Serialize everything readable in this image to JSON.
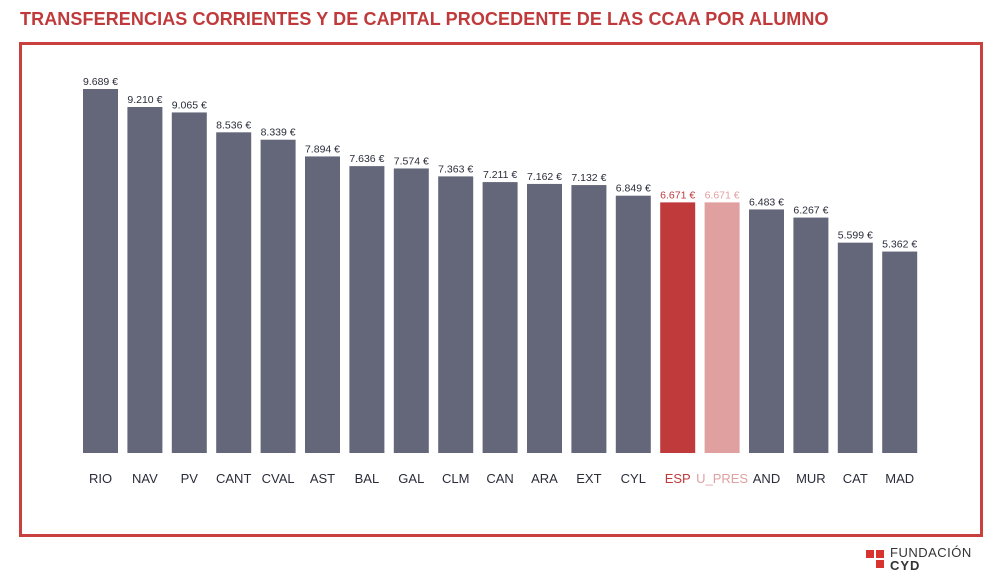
{
  "chart_data": {
    "type": "bar",
    "title": "TRANSFERENCIAS CORRIENTES Y DE CAPITAL PROCEDENTE DE LAS CCAA POR ALUMNO",
    "categories": [
      "RIO",
      "NAV",
      "PV",
      "CANT",
      "CVAL",
      "AST",
      "BAL",
      "GAL",
      "CLM",
      "CAN",
      "ARA",
      "EXT",
      "CYL",
      "ESP",
      "U_PRES",
      "AND",
      "MUR",
      "CAT",
      "MAD"
    ],
    "values": [
      9689,
      9210,
      9065,
      8536,
      8339,
      7894,
      7636,
      7574,
      7363,
      7211,
      7162,
      7132,
      6849,
      6671,
      6671,
      6483,
      6267,
      5599,
      5362
    ],
    "value_labels": [
      "9.689 €",
      "9.210 €",
      "9.065 €",
      "8.536 €",
      "8.339 €",
      "7.894 €",
      "7.636 €",
      "7.574 €",
      "7.363 €",
      "7.211 €",
      "7.162 €",
      "7.132 €",
      "6.849 €",
      "6.671 €",
      "6.671 €",
      "6.483 €",
      "6.267 €",
      "5.599 €",
      "5.362 €"
    ],
    "colors": {
      "default": "#646779",
      "ESP": "#c0393b",
      "U_PRES": "#e0a09f",
      "label_default": "#2a2c3a"
    },
    "ylim": [
      0,
      9689
    ],
    "grid": false,
    "xlabel": "",
    "ylabel": ""
  },
  "logo": {
    "line1": "FUNDACIÓN",
    "line2": "CYD"
  }
}
